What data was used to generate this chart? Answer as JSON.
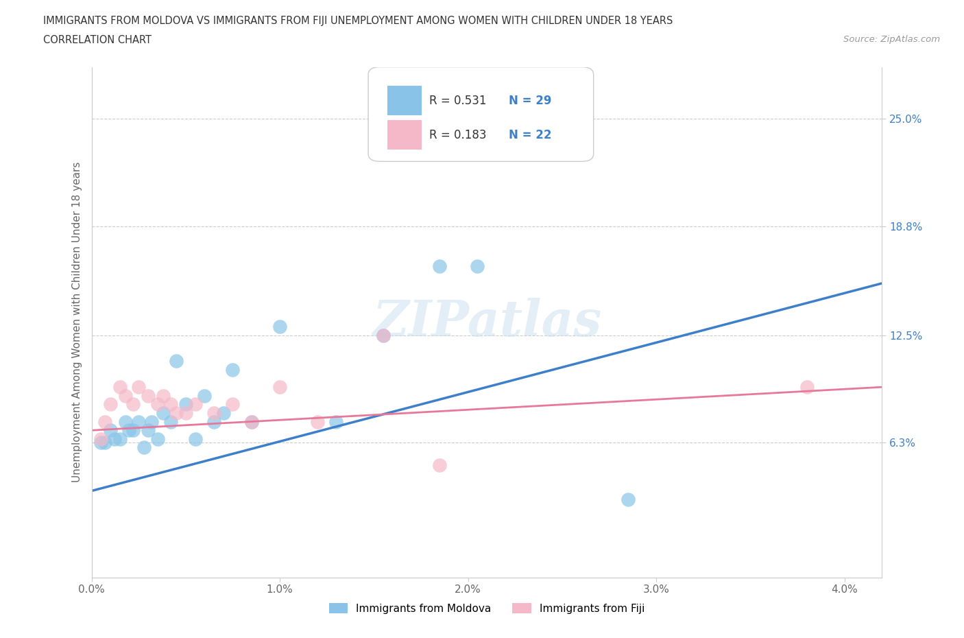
{
  "title_line1": "IMMIGRANTS FROM MOLDOVA VS IMMIGRANTS FROM FIJI UNEMPLOYMENT AMONG WOMEN WITH CHILDREN UNDER 18 YEARS",
  "title_line2": "CORRELATION CHART",
  "source_text": "Source: ZipAtlas.com",
  "ylabel": "Unemployment Among Women with Children Under 18 years",
  "xlim": [
    0.0,
    4.2
  ],
  "ylim": [
    -1.5,
    28.0
  ],
  "ytick_positions": [
    6.3,
    12.5,
    18.8,
    25.0
  ],
  "ytick_labels": [
    "6.3%",
    "12.5%",
    "18.8%",
    "25.0%"
  ],
  "xtick_positions": [
    0.0,
    1.0,
    2.0,
    3.0,
    4.0
  ],
  "xtick_labels": [
    "0.0%",
    "1.0%",
    "2.0%",
    "3.0%",
    "4.0%"
  ],
  "legend_labels": [
    "Immigrants from Moldova",
    "Immigrants from Fiji"
  ],
  "r_moldova": "0.531",
  "n_moldova": "29",
  "r_fiji": "0.183",
  "n_fiji": "22",
  "color_moldova": "#89c4e8",
  "color_fiji": "#f5b8c8",
  "trendline_moldova_color": "#3d7fc9",
  "trendline_fiji_color": "#e8789a",
  "watermark": "ZIPatlas",
  "background_color": "#ffffff",
  "grid_color": "#cccccc",
  "legend_text_color": "#333333",
  "legend_number_color": "#3d7fc9",
  "moldova_points_x": [
    0.05,
    0.07,
    0.1,
    0.12,
    0.15,
    0.18,
    0.2,
    0.22,
    0.25,
    0.28,
    0.3,
    0.32,
    0.35,
    0.38,
    0.42,
    0.45,
    0.5,
    0.55,
    0.6,
    0.65,
    0.7,
    0.75,
    0.85,
    1.0,
    1.3,
    1.55,
    1.85,
    2.05,
    2.85
  ],
  "moldova_points_y": [
    6.3,
    6.3,
    7.0,
    6.5,
    6.5,
    7.5,
    7.0,
    7.0,
    7.5,
    6.0,
    7.0,
    7.5,
    6.5,
    8.0,
    7.5,
    11.0,
    8.5,
    6.5,
    9.0,
    7.5,
    8.0,
    10.5,
    7.5,
    13.0,
    7.5,
    12.5,
    16.5,
    16.5,
    3.0
  ],
  "fiji_points_x": [
    0.05,
    0.07,
    0.1,
    0.15,
    0.18,
    0.22,
    0.25,
    0.3,
    0.35,
    0.38,
    0.42,
    0.45,
    0.5,
    0.55,
    0.65,
    0.75,
    0.85,
    1.0,
    1.2,
    1.55,
    1.85,
    3.8
  ],
  "fiji_points_y": [
    6.5,
    7.5,
    8.5,
    9.5,
    9.0,
    8.5,
    9.5,
    9.0,
    8.5,
    9.0,
    8.5,
    8.0,
    8.0,
    8.5,
    8.0,
    8.5,
    7.5,
    9.5,
    7.5,
    12.5,
    5.0,
    9.5
  ],
  "moldova_trendline_x": [
    0.0,
    4.2
  ],
  "moldova_trendline_y": [
    3.5,
    15.5
  ],
  "fiji_trendline_x": [
    0.0,
    4.2
  ],
  "fiji_trendline_y": [
    7.0,
    9.5
  ]
}
